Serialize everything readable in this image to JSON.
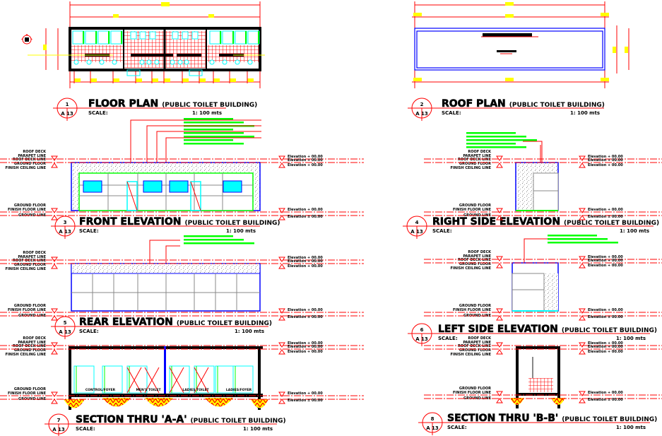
{
  "colors": {
    "linework": "#ff0000",
    "walls": "#0000ff",
    "glazing": "#00ffff",
    "frames": "#00ff00",
    "dimension_tags": "#ffff00",
    "text": "#000000"
  },
  "views": [
    {
      "id": "floor-plan",
      "number": "1",
      "sheet": "A 13",
      "title": "FLOOR PLAN",
      "subtitle": "(PUBLIC TOILET BUILDING)",
      "scale_label": "SCALE:",
      "scale": "1: 100 mts"
    },
    {
      "id": "roof-plan",
      "number": "2",
      "sheet": "A 13",
      "title": "ROOF PLAN",
      "subtitle": "(PUBLIC TOILET BUILDING)",
      "scale_label": "SCALE:",
      "scale": "1: 100 mts"
    },
    {
      "id": "front-elevation",
      "number": "3",
      "sheet": "A 13",
      "title": "FRONT ELEVATION",
      "subtitle": "(PUBLIC TOILET BUILDING)",
      "scale_label": "SCALE:",
      "scale": "1: 100 mts"
    },
    {
      "id": "right-side-elevation",
      "number": "4",
      "sheet": "A 13",
      "title": "RIGHT SIDE ELEVATION",
      "subtitle": "(PUBLIC TOILET BUILDING)",
      "scale_label": "SCALE:",
      "scale": "1: 100 mts"
    },
    {
      "id": "rear-elevation",
      "number": "5",
      "sheet": "A 13",
      "title": "REAR ELEVATION",
      "subtitle": "(PUBLIC TOILET BUILDING)",
      "scale_label": "SCALE:",
      "scale": "1: 100 mts"
    },
    {
      "id": "left-side-elevation",
      "number": "6",
      "sheet": "A 13",
      "title": "LEFT SIDE ELEVATION",
      "subtitle": "(PUBLIC TOILET BUILDING)",
      "scale_label": "SCALE:",
      "scale": "1: 100 mts"
    },
    {
      "id": "section-a-a",
      "number": "7",
      "sheet": "A 13",
      "title": "SECTION THRU 'A-A'",
      "subtitle": "(PUBLIC TOILET BUILDING)",
      "scale_label": "SCALE:",
      "scale": "1: 100 mts"
    },
    {
      "id": "section-b-b",
      "number": "8",
      "sheet": "A 13",
      "title": "SECTION THRU 'B-B'",
      "subtitle": "(PUBLIC TOILET BUILDING)",
      "scale_label": "SCALE:",
      "scale": "1: 100 mts"
    }
  ],
  "level_labels": {
    "top": [
      "ROOF DECK",
      "PARAPET LINE",
      "ROOF DECK LINE",
      "GROUND FLOOR",
      "FINISH CEILING LINE"
    ],
    "bottom": [
      "GROUND FLOOR",
      "FINISH FLOOR LINE",
      "GROUND LINE"
    ]
  },
  "elevation_values": [
    "Elevation + 00.00",
    "Elevation + 00.00",
    "Elevation + 00.00",
    "Elevation + 00.00",
    "Elevation ± 00.00"
  ],
  "section_rooms": [
    "CONTROL/FOYER",
    "MEN'S TOILET",
    "LADIES TOILET",
    "LADIES/FOYER"
  ]
}
